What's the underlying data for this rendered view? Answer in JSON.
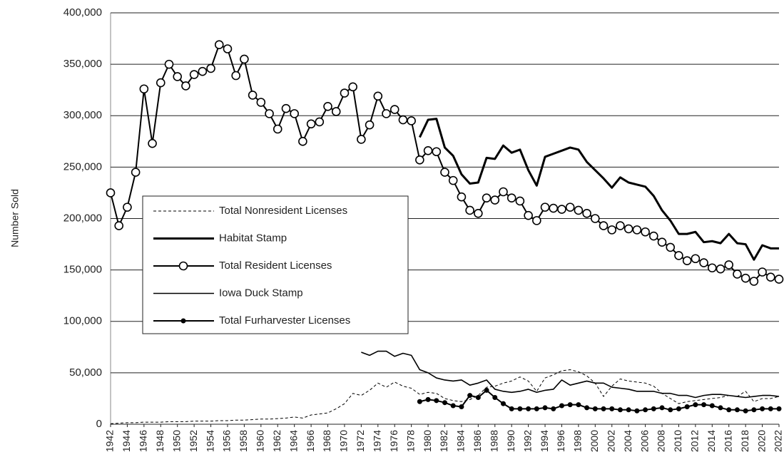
{
  "chart_data": {
    "type": "line",
    "y_label": "Number Sold",
    "x": [
      1942,
      1943,
      1944,
      1945,
      1946,
      1947,
      1948,
      1949,
      1950,
      1951,
      1952,
      1953,
      1954,
      1955,
      1956,
      1957,
      1958,
      1959,
      1960,
      1961,
      1962,
      1963,
      1964,
      1965,
      1966,
      1967,
      1968,
      1969,
      1970,
      1971,
      1972,
      1973,
      1974,
      1975,
      1976,
      1977,
      1978,
      1979,
      1980,
      1981,
      1982,
      1983,
      1984,
      1985,
      1986,
      1987,
      1988,
      1989,
      1990,
      1991,
      1992,
      1993,
      1994,
      1995,
      1996,
      1997,
      1998,
      1999,
      2000,
      2001,
      2002,
      2003,
      2004,
      2005,
      2006,
      2007,
      2008,
      2009,
      2010,
      2011,
      2012,
      2013,
      2014,
      2015,
      2016,
      2017,
      2018,
      2019,
      2020,
      2021,
      2022
    ],
    "xlim": [
      1942,
      2022
    ],
    "xticks": [
      1942,
      1944,
      1946,
      1948,
      1950,
      1952,
      1954,
      1956,
      1958,
      1960,
      1962,
      1964,
      1966,
      1968,
      1970,
      1972,
      1974,
      1976,
      1978,
      1980,
      1982,
      1984,
      1986,
      1988,
      1990,
      1992,
      1994,
      1996,
      1998,
      2000,
      2002,
      2004,
      2006,
      2008,
      2010,
      2012,
      2014,
      2016,
      2018,
      2020,
      2022
    ],
    "ylim": [
      0,
      400000
    ],
    "yticks": [
      0,
      {
        "value": 50000,
        "label": "50,000"
      },
      {
        "value": 100000,
        "label": "100,000"
      },
      {
        "value": 150000,
        "label": "150,000"
      },
      {
        "value": 200000,
        "label": "200,000"
      },
      {
        "value": 250000,
        "label": "250,000"
      },
      {
        "value": 300000,
        "label": "300,000"
      },
      {
        "value": 350000,
        "label": "350,000"
      },
      {
        "value": 400000,
        "label": "400,000"
      }
    ],
    "grid": true,
    "legend": "center-left",
    "series": [
      {
        "name": "Total Nonresident Licenses",
        "color": "#000000",
        "dash": "dashed",
        "width": 1,
        "marker": "none",
        "values": [
          500,
          1000,
          1500,
          1500,
          2000,
          2000,
          2000,
          2500,
          2500,
          2500,
          3000,
          3000,
          3000,
          3500,
          3500,
          4000,
          4000,
          4500,
          5000,
          5000,
          5500,
          6000,
          7000,
          6000,
          9000,
          10000,
          11000,
          15000,
          20000,
          30000,
          28000,
          33000,
          40000,
          36000,
          41000,
          37000,
          35000,
          29000,
          31000,
          30000,
          25000,
          23000,
          22000,
          24000,
          28000,
          36000,
          37000,
          40000,
          42000,
          46000,
          42000,
          32000,
          45000,
          48000,
          52000,
          53000,
          51000,
          47000,
          40000,
          27000,
          37000,
          44000,
          42000,
          41000,
          40000,
          37000,
          30000,
          25000,
          20000,
          22000,
          23000,
          24000,
          25000,
          26000,
          28000,
          27000,
          32000,
          22000,
          25000,
          25000,
          27000
        ]
      },
      {
        "name": "Habitat Stamp",
        "color": "#000000",
        "dash": "solid",
        "width": 3,
        "marker": "none",
        "values": [
          null,
          null,
          null,
          null,
          null,
          null,
          null,
          null,
          null,
          null,
          null,
          null,
          null,
          null,
          null,
          null,
          null,
          null,
          null,
          null,
          null,
          null,
          null,
          null,
          null,
          null,
          null,
          null,
          null,
          null,
          null,
          null,
          null,
          null,
          null,
          null,
          null,
          279000,
          296000,
          297000,
          269000,
          261000,
          243000,
          234000,
          235000,
          259000,
          258000,
          271000,
          264000,
          267000,
          247000,
          232000,
          260000,
          263000,
          266000,
          269000,
          267000,
          255000,
          247000,
          239000,
          230000,
          240000,
          235000,
          233000,
          231000,
          222000,
          208000,
          198000,
          185000,
          185000,
          187000,
          177000,
          178000,
          176000,
          185000,
          176000,
          175000,
          160000,
          174000,
          171000,
          171000
        ]
      },
      {
        "name": "Total Resident Licenses",
        "color": "#000000",
        "dash": "solid",
        "width": 2,
        "marker": "open-circle",
        "values": [
          225000,
          193000,
          211000,
          245000,
          326000,
          273000,
          332000,
          350000,
          338000,
          329000,
          340000,
          343000,
          346000,
          369000,
          365000,
          339000,
          355000,
          320000,
          313000,
          302000,
          287000,
          307000,
          302000,
          275000,
          292000,
          294000,
          309000,
          304000,
          322000,
          328000,
          277000,
          291000,
          319000,
          302000,
          306000,
          296000,
          295000,
          257000,
          266000,
          265000,
          245000,
          237000,
          221000,
          208000,
          205000,
          220000,
          218000,
          226000,
          220000,
          217000,
          203000,
          198000,
          211000,
          210000,
          209000,
          211000,
          208000,
          205000,
          200000,
          193000,
          189000,
          193000,
          190000,
          189000,
          187000,
          183000,
          177000,
          172000,
          164000,
          159000,
          161000,
          157000,
          152000,
          151000,
          155000,
          146000,
          142000,
          139000,
          148000,
          143000,
          141000
        ]
      },
      {
        "name": "Iowa Duck Stamp",
        "color": "#000000",
        "dash": "solid",
        "width": 1.6,
        "marker": "none",
        "values": [
          null,
          null,
          null,
          null,
          null,
          null,
          null,
          null,
          null,
          null,
          null,
          null,
          null,
          null,
          null,
          null,
          null,
          null,
          null,
          null,
          null,
          null,
          null,
          null,
          null,
          null,
          null,
          null,
          null,
          null,
          70000,
          67000,
          71000,
          71000,
          66000,
          69000,
          67000,
          53000,
          50000,
          45000,
          43000,
          42000,
          43000,
          38000,
          40000,
          43000,
          34000,
          32000,
          31000,
          32000,
          34000,
          31000,
          33000,
          34000,
          43000,
          38000,
          40000,
          42000,
          40000,
          40000,
          36000,
          35000,
          34000,
          32000,
          32000,
          32000,
          30000,
          30000,
          28000,
          28000,
          26000,
          28000,
          29000,
          29000,
          28000,
          27000,
          26000,
          27000,
          28000,
          28000,
          27000
        ]
      },
      {
        "name": "Total Furharvester Licenses",
        "color": "#000000",
        "dash": "solid",
        "width": 2,
        "marker": "filled-circle",
        "values": [
          null,
          null,
          null,
          null,
          null,
          null,
          null,
          null,
          null,
          null,
          null,
          null,
          null,
          null,
          null,
          null,
          null,
          null,
          null,
          null,
          null,
          null,
          null,
          null,
          null,
          null,
          null,
          null,
          null,
          null,
          null,
          null,
          null,
          null,
          null,
          null,
          null,
          22000,
          24000,
          23000,
          21000,
          18000,
          17000,
          28000,
          26000,
          33000,
          26000,
          20000,
          15000,
          15000,
          15000,
          15000,
          16000,
          15000,
          18000,
          19000,
          19000,
          16000,
          15000,
          15000,
          15000,
          14000,
          14000,
          13000,
          14000,
          15000,
          16000,
          14000,
          15000,
          17000,
          19000,
          19000,
          18000,
          16000,
          14000,
          14000,
          13000,
          14000,
          15000,
          15000,
          15000
        ]
      }
    ]
  }
}
